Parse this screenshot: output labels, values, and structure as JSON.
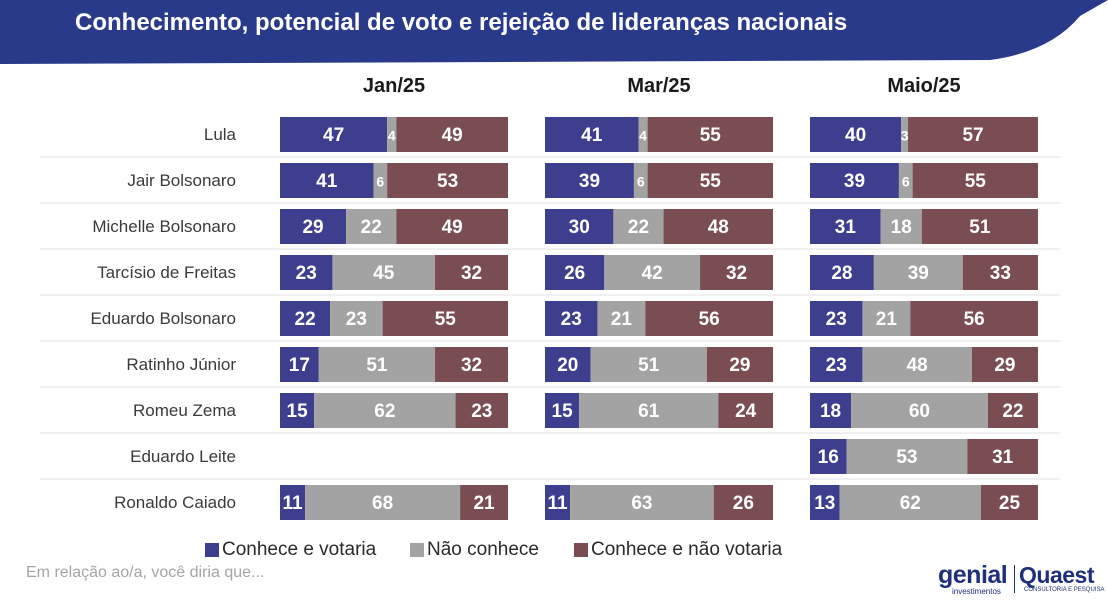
{
  "header": {
    "title": "Conhecimento, potencial de voto e rejeição de lideranças nacionais"
  },
  "colors": {
    "band": "#2a3a8a",
    "conhece_e_votaria": "#3d3e8e",
    "nao_conhece": "#a3a3a3",
    "conhece_e_nao_votaria": "#7a4d52",
    "separator": "#e3e3e3"
  },
  "legend": [
    {
      "label": "Conhece e votaria",
      "color": "#3d3e8e"
    },
    {
      "label": "Não conhece",
      "color": "#a3a3a3"
    },
    {
      "label": "Conhece e não votaria",
      "color": "#7a4d52"
    }
  ],
  "footnote": "Em relação ao/a, você diria que...",
  "logos": {
    "genial": "genial",
    "genial_sub": "investimentos",
    "quaest": "Quaest",
    "quaest_sub": "CONSULTORIA E PESQUISA"
  },
  "chart_data": {
    "type": "bar",
    "stacked": true,
    "orientation": "horizontal",
    "normalized_to": 100,
    "categories": [
      "Lula",
      "Jair Bolsonaro",
      "Michelle Bolsonaro",
      "Tarcísio de Freitas",
      "Eduardo Bolsonaro",
      "Ratinho Júnior",
      "Romeu Zema",
      "Eduardo Leite",
      "Ronaldo Caiado"
    ],
    "panels": [
      {
        "title": "Jan/25",
        "series": [
          {
            "name": "Conhece e votaria",
            "values": [
              47,
              41,
              29,
              23,
              22,
              17,
              15,
              null,
              11
            ]
          },
          {
            "name": "Não conhece",
            "values": [
              4,
              6,
              22,
              45,
              23,
              51,
              62,
              null,
              68
            ]
          },
          {
            "name": "Conhece e não votaria",
            "values": [
              49,
              53,
              49,
              32,
              55,
              32,
              23,
              null,
              21
            ]
          }
        ]
      },
      {
        "title": "Mar/25",
        "series": [
          {
            "name": "Conhece e votaria",
            "values": [
              41,
              39,
              30,
              26,
              23,
              20,
              15,
              null,
              11
            ]
          },
          {
            "name": "Não conhece",
            "values": [
              4,
              6,
              22,
              42,
              21,
              51,
              61,
              null,
              63
            ]
          },
          {
            "name": "Conhece e não votaria",
            "values": [
              55,
              55,
              48,
              32,
              56,
              29,
              24,
              null,
              26
            ]
          }
        ]
      },
      {
        "title": "Maio/25",
        "series": [
          {
            "name": "Conhece e votaria",
            "values": [
              40,
              39,
              31,
              28,
              23,
              23,
              18,
              16,
              13
            ]
          },
          {
            "name": "Não conhece",
            "values": [
              3,
              6,
              18,
              39,
              21,
              48,
              60,
              53,
              62
            ]
          },
          {
            "name": "Conhece e não votaria",
            "values": [
              57,
              55,
              51,
              33,
              56,
              29,
              22,
              31,
              25
            ]
          }
        ]
      }
    ]
  }
}
